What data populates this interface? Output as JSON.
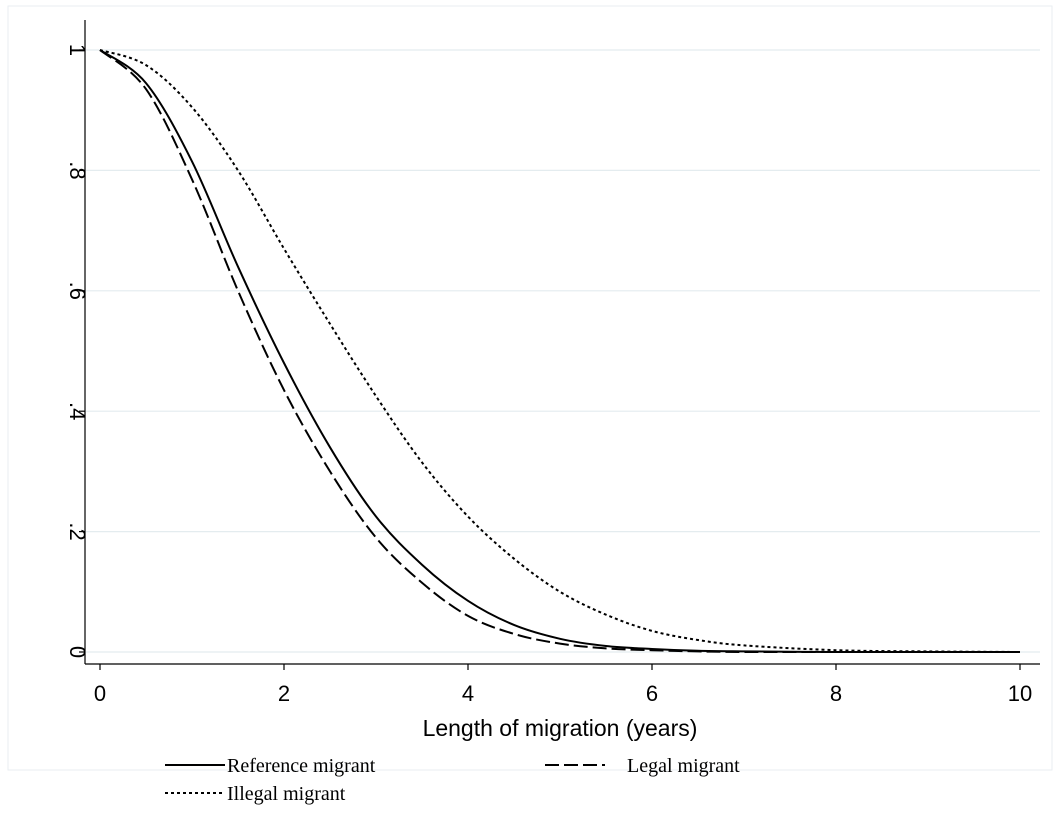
{
  "chart_data": {
    "type": "line",
    "title": "",
    "xlabel": "Length of migration (years)",
    "ylabel": "",
    "xlim": [
      0,
      10
    ],
    "ylim": [
      0,
      1
    ],
    "xticks": [
      0,
      2,
      4,
      6,
      8,
      10
    ],
    "xtick_labels": [
      "0",
      "2",
      "4",
      "6",
      "8",
      "10"
    ],
    "yticks": [
      0,
      0.2,
      0.4,
      0.6,
      0.8,
      1
    ],
    "ytick_labels": [
      "0",
      ".2",
      ".4",
      ".6",
      ".8",
      "1"
    ],
    "grid": true,
    "legend_position": "bottom",
    "x": [
      0,
      0.5,
      1,
      1.5,
      2,
      2.5,
      3,
      3.5,
      4,
      4.5,
      5,
      5.5,
      6,
      6.5,
      7,
      8,
      9,
      10
    ],
    "series": [
      {
        "name": "Reference migrant",
        "style": "solid",
        "values": [
          1.0,
          0.945,
          0.815,
          0.64,
          0.48,
          0.34,
          0.225,
          0.145,
          0.085,
          0.045,
          0.022,
          0.01,
          0.005,
          0.002,
          0.001,
          0,
          0,
          0
        ]
      },
      {
        "name": "Legal migrant",
        "style": "dashed",
        "values": [
          1.0,
          0.935,
          0.785,
          0.6,
          0.435,
          0.3,
          0.19,
          0.115,
          0.06,
          0.03,
          0.014,
          0.006,
          0.003,
          0.001,
          0,
          0,
          0,
          0
        ]
      },
      {
        "name": "Illegal migrant",
        "style": "dotted",
        "values": [
          1.0,
          0.975,
          0.905,
          0.8,
          0.67,
          0.545,
          0.425,
          0.315,
          0.225,
          0.155,
          0.1,
          0.062,
          0.035,
          0.02,
          0.011,
          0.003,
          0.001,
          0
        ]
      }
    ]
  }
}
